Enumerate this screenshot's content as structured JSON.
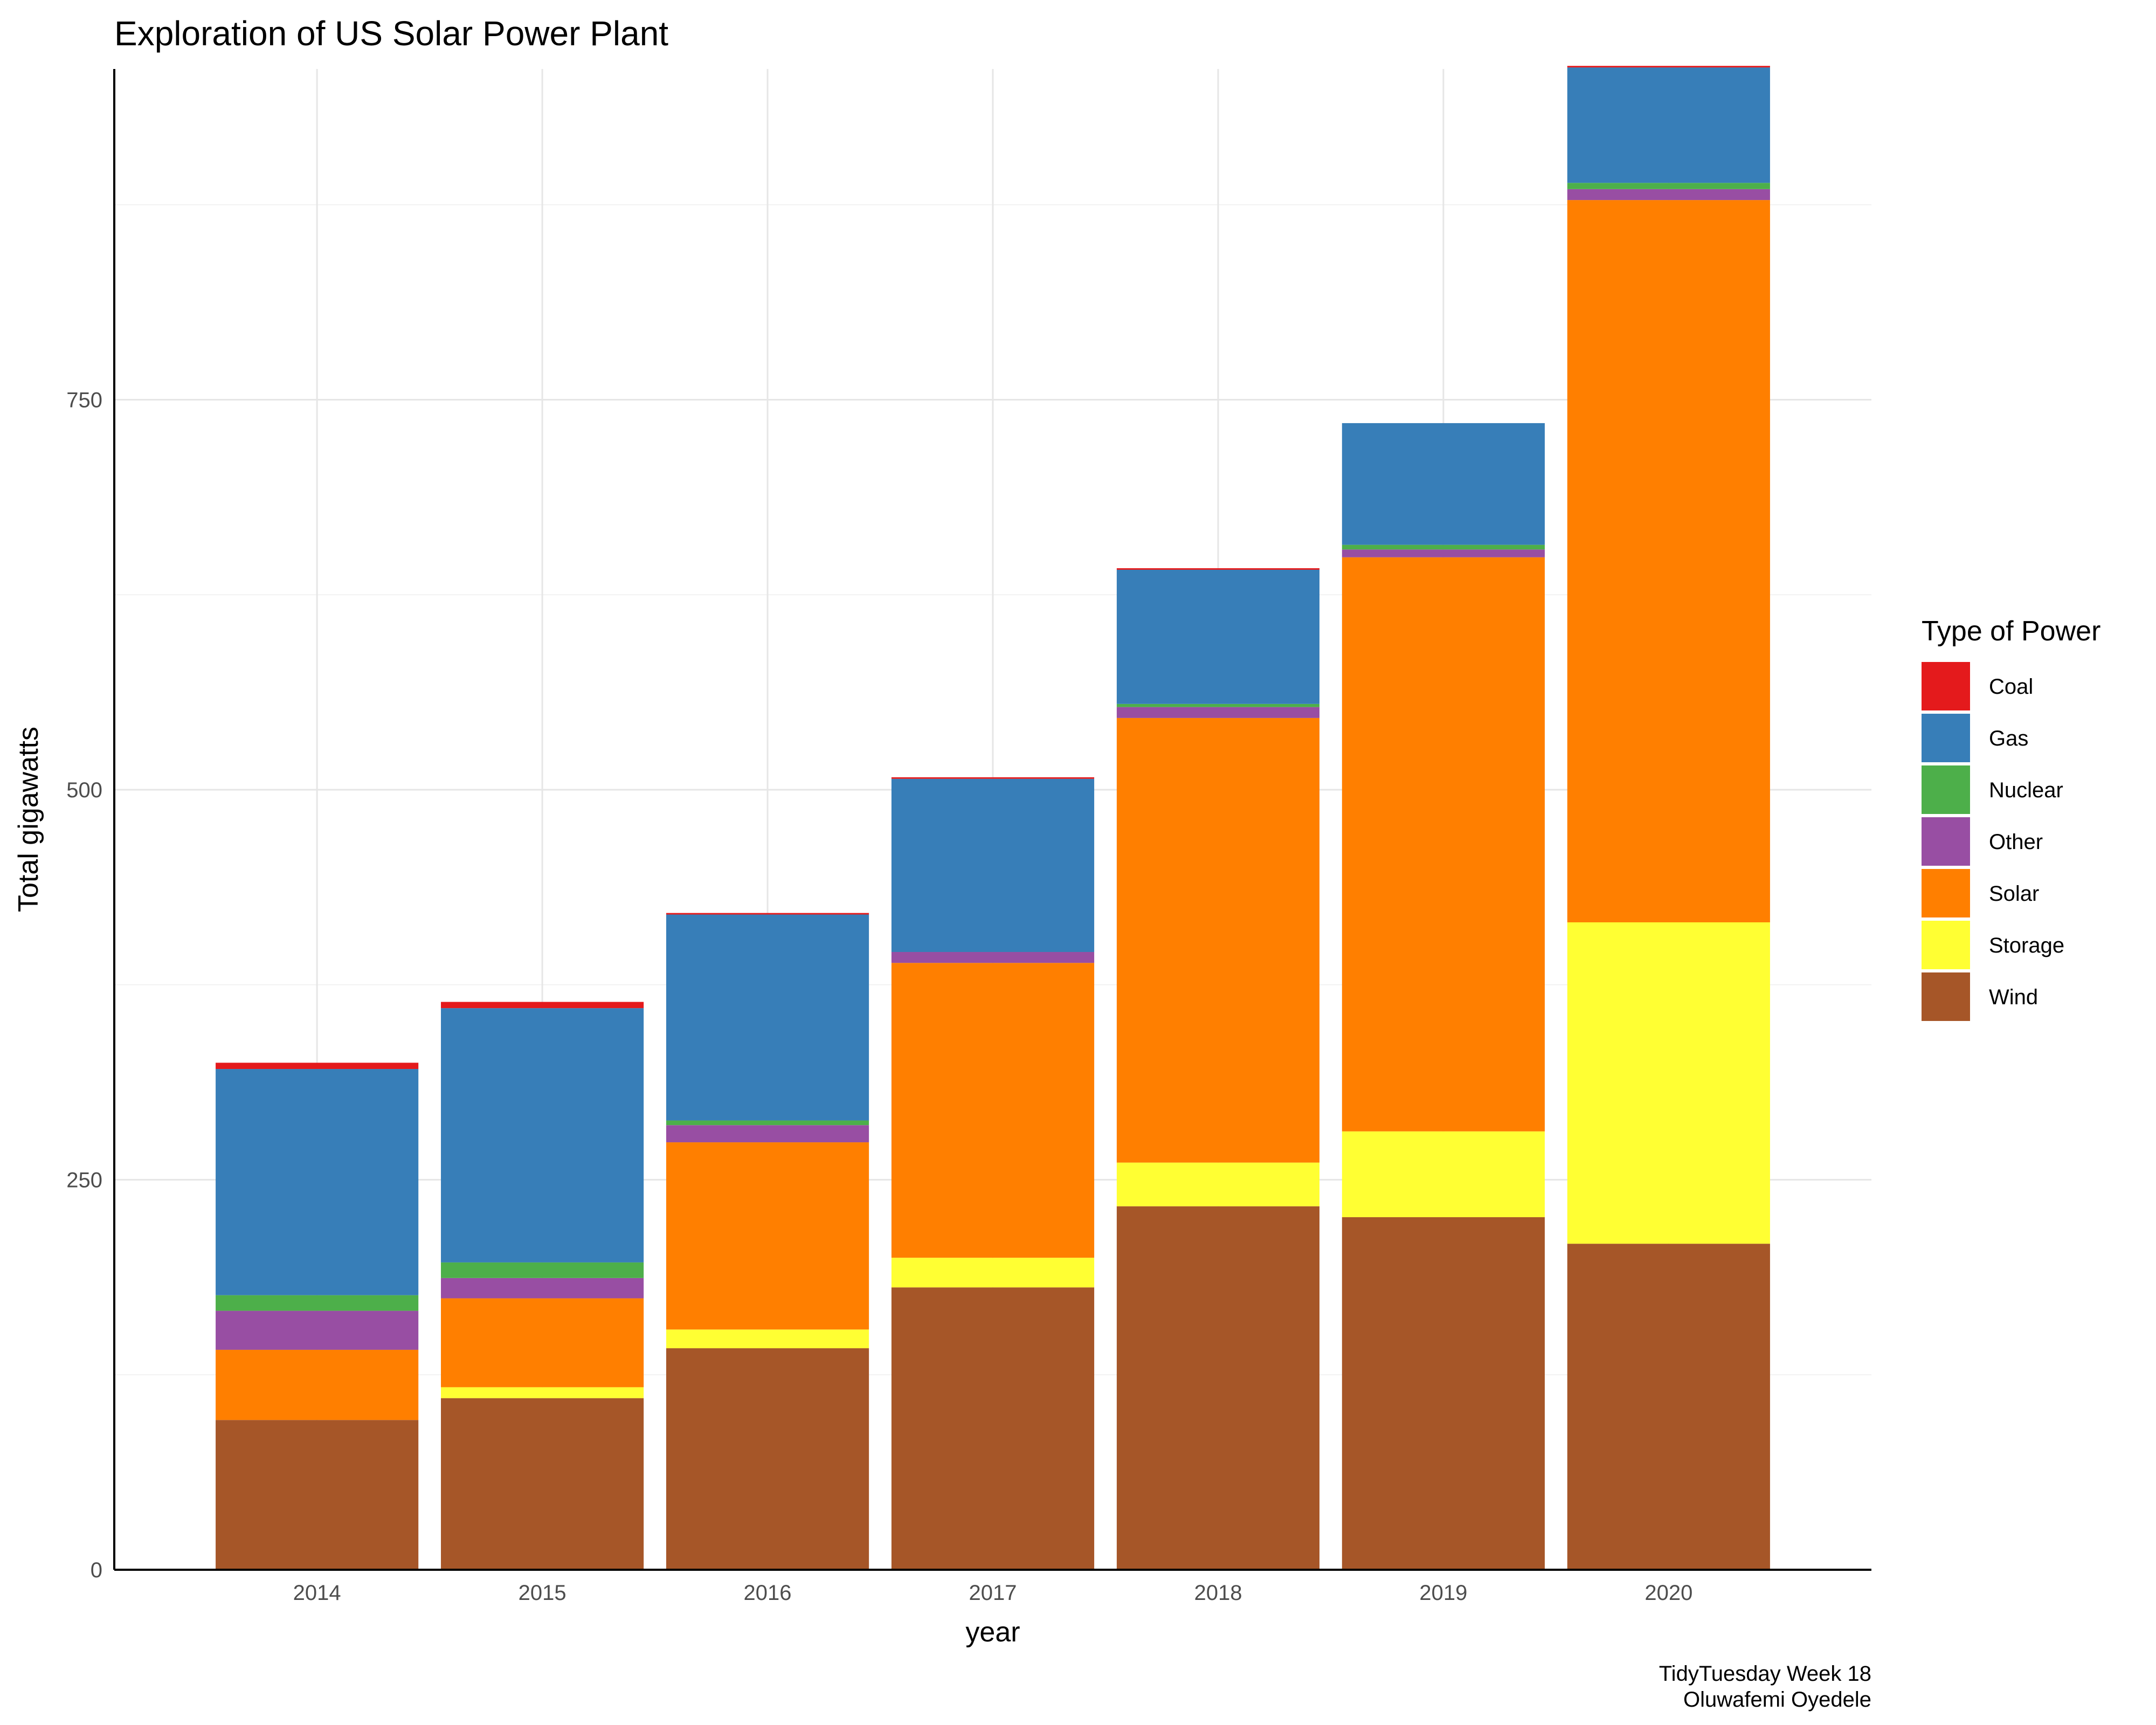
{
  "chart_data": {
    "type": "bar",
    "stacked": true,
    "title": "Exploration of US Solar Power Plant",
    "xlabel": "year",
    "ylabel": "Total gigawatts",
    "categories": [
      "2014",
      "2015",
      "2016",
      "2017",
      "2018",
      "2019",
      "2020"
    ],
    "ylim": [
      0,
      962
    ],
    "yticks": [
      0,
      250,
      500,
      750
    ],
    "grid": true,
    "legend": {
      "title": "Type of Power",
      "position": "right"
    },
    "series": [
      {
        "name": "Wind",
        "color": "#A65628",
        "values": [
          96,
          110,
          142,
          181,
          233,
          226,
          209
        ]
      },
      {
        "name": "Storage",
        "color": "#FFFF33",
        "values": [
          0,
          7,
          12,
          19,
          28,
          55,
          206
        ]
      },
      {
        "name": "Solar",
        "color": "#FF7F00",
        "values": [
          45,
          57,
          120,
          189,
          285,
          368,
          463
        ]
      },
      {
        "name": "Other",
        "color": "#984EA3",
        "values": [
          25,
          13,
          11,
          7,
          7,
          5,
          7
        ]
      },
      {
        "name": "Nuclear",
        "color": "#4DAF4A",
        "values": [
          10,
          10,
          3,
          0,
          2,
          3,
          4
        ]
      },
      {
        "name": "Gas",
        "color": "#377EB8",
        "values": [
          145,
          163,
          132,
          111,
          86,
          78,
          74
        ]
      },
      {
        "name": "Coal",
        "color": "#E41A1C",
        "values": [
          4,
          4,
          1,
          1,
          1,
          0,
          1
        ]
      }
    ],
    "legend_order": [
      "Coal",
      "Gas",
      "Nuclear",
      "Other",
      "Solar",
      "Storage",
      "Wind"
    ]
  },
  "caption": {
    "line1": "TidyTuesday Week 18",
    "line2": "Oluwafemi Oyedele"
  }
}
